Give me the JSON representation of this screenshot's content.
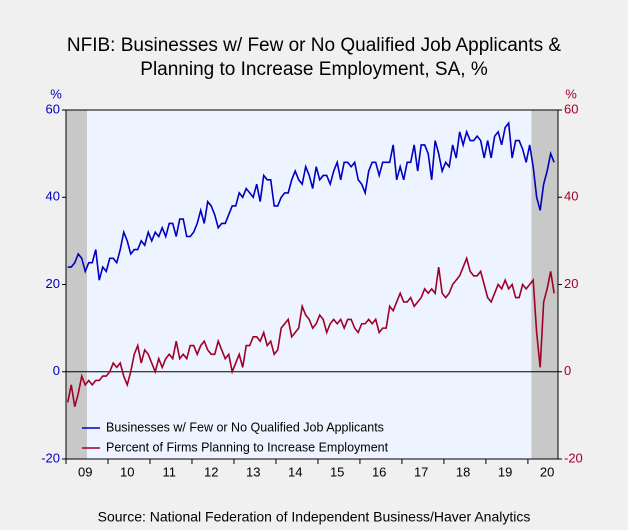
{
  "chart_data": {
    "type": "line",
    "title": [
      "NFIB: Businesses w/ Few or No Qualified Job Applicants &",
      "Planning to Increase Employment, SA, %"
    ],
    "ylabel": "%",
    "y2label": "%",
    "source": "Source:  National Federation of Independent Business/Haver Analytics",
    "categories": [
      null,
      null,
      null,
      null,
      null,
      "09",
      null,
      null,
      null,
      null,
      null,
      null,
      null,
      null,
      null,
      null,
      null,
      "10",
      null,
      null,
      null,
      null,
      null,
      null,
      null,
      null,
      null,
      null,
      null,
      "11",
      null,
      null,
      null,
      null,
      null,
      null,
      null,
      null,
      null,
      null,
      null,
      "12",
      null,
      null,
      null,
      null,
      null,
      null,
      null,
      null,
      null,
      null,
      null,
      "13",
      null,
      null,
      null,
      null,
      null,
      null,
      null,
      null,
      null,
      null,
      null,
      "14",
      null,
      null,
      null,
      null,
      null,
      null,
      null,
      null,
      null,
      null,
      null,
      "15",
      null,
      null,
      null,
      null,
      null,
      null,
      null,
      null,
      null,
      null,
      null,
      "16",
      null,
      null,
      null,
      null,
      null,
      null,
      null,
      null,
      null,
      null,
      null,
      "17",
      null,
      null,
      null,
      null,
      null,
      null,
      null,
      null,
      null,
      null,
      null,
      "18",
      null,
      null,
      null,
      null,
      null,
      null,
      null,
      null,
      null,
      null,
      null,
      "19",
      null,
      null,
      null,
      null,
      null,
      null,
      null,
      null,
      null,
      null,
      null,
      "20",
      null,
      null
    ],
    "shaded_periods": [
      [
        0,
        5
      ],
      [
        133,
        139
      ]
    ],
    "ylim": [
      -20,
      60
    ],
    "yticks": [
      -20,
      0,
      20,
      40,
      60
    ],
    "y2lim": [
      -20,
      60
    ],
    "y2ticks": [
      -20,
      0,
      20,
      40,
      60
    ],
    "series": [
      {
        "name": "Businesses w/ Few or No Qualified Job Applicants",
        "color": "#0000c0",
        "axis": "y",
        "values": [
          24,
          24,
          25,
          27,
          26,
          23,
          25,
          25,
          28,
          21,
          24,
          23,
          26,
          26,
          25,
          28,
          32,
          30,
          27,
          28,
          28,
          30,
          29,
          32,
          30,
          32,
          31,
          33,
          31,
          34,
          34,
          31,
          35,
          35,
          31,
          31,
          32,
          34,
          37,
          34,
          39,
          38,
          36,
          33,
          34,
          34,
          36,
          38,
          38,
          41,
          40,
          42,
          41,
          40,
          43,
          39,
          45,
          44,
          44,
          38,
          38,
          40,
          41,
          41,
          44,
          46,
          44,
          43,
          47,
          45,
          42,
          47,
          44,
          45,
          45,
          43,
          46,
          48,
          44,
          48,
          48,
          47,
          48,
          44,
          43,
          41,
          46,
          48,
          48,
          45,
          48,
          48,
          48,
          52,
          44,
          47,
          44,
          48,
          48,
          52,
          46,
          52,
          52,
          50,
          44,
          53,
          50,
          46,
          48,
          47,
          52,
          49,
          55,
          52,
          55,
          53,
          53,
          54,
          53,
          49,
          53,
          49,
          54,
          55,
          52,
          56,
          57,
          49,
          53,
          53,
          51,
          48,
          52,
          47,
          40,
          37,
          43,
          46,
          50,
          48
        ]
      },
      {
        "name": "Percent of Firms Planning to Increase Employment",
        "color": "#a00028",
        "axis": "y2",
        "values": [
          -7,
          -3,
          -8,
          -5,
          -1,
          -3,
          -2,
          -3,
          -2,
          -2,
          -1,
          -1,
          0,
          2,
          1,
          2,
          -1,
          -3,
          0,
          4,
          6,
          2,
          5,
          4,
          2,
          0,
          3,
          1,
          3,
          4,
          3,
          7,
          3,
          4,
          3,
          6,
          6,
          4,
          6,
          7,
          5,
          4,
          4,
          7,
          5,
          3,
          4,
          0,
          2,
          4,
          1,
          6,
          6,
          8,
          8,
          7,
          9,
          6,
          7,
          4,
          5,
          10,
          11,
          12,
          8,
          9,
          10,
          15,
          13,
          12,
          10,
          11,
          13,
          12,
          9,
          11,
          12,
          11,
          12,
          10,
          12,
          12,
          10,
          9,
          11,
          11,
          12,
          11,
          12,
          9,
          10,
          10,
          15,
          14,
          16,
          18,
          16,
          16,
          17,
          15,
          16,
          17,
          19,
          18,
          19,
          18,
          24,
          18,
          17,
          18,
          20,
          21,
          22,
          24,
          26,
          23,
          22,
          22,
          23,
          20,
          17,
          16,
          18,
          20,
          19,
          21,
          19,
          20,
          17,
          17,
          20,
          19,
          20,
          21,
          9,
          1,
          16,
          19,
          23,
          18
        ]
      }
    ]
  }
}
